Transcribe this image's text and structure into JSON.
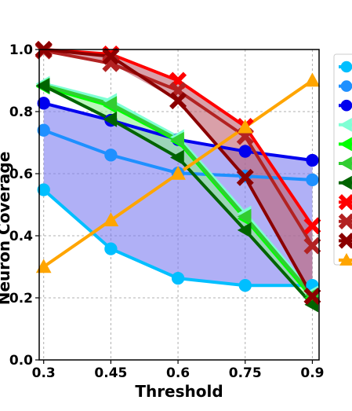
{
  "chart_data": {
    "type": "line",
    "title": "",
    "xlabel": "Threshold",
    "ylabel": "Neuron Coverage",
    "x": [
      0.3,
      0.45,
      0.6,
      0.75,
      0.9
    ],
    "xticks": [
      "0.3",
      "0.45",
      "0.6",
      "0.75",
      "0.9"
    ],
    "yticks": [
      "0.0",
      "0.2",
      "0.4",
      "0.6",
      "0.8",
      "1.0"
    ],
    "xlim": [
      0.29,
      0.915
    ],
    "ylim": [
      0.0,
      1.0
    ],
    "grid": true,
    "legend_position": "right (cropped)",
    "series": [
      {
        "color": "#00bfff",
        "marker": "circle",
        "values": [
          0.548,
          0.358,
          0.263,
          0.24,
          0.24
        ]
      },
      {
        "color": "#1e90ff",
        "marker": "circle",
        "values": [
          0.74,
          0.66,
          0.602,
          0.592,
          0.58
        ]
      },
      {
        "color": "#0000ee",
        "marker": "circle",
        "values": [
          0.827,
          0.772,
          0.71,
          0.672,
          0.643
        ]
      },
      {
        "color": "#7fffd4",
        "marker": "triangle-left",
        "values": [
          0.89,
          0.835,
          0.718,
          0.472,
          0.215
        ]
      },
      {
        "color": "#00ff00",
        "marker": "triangle-left",
        "values": [
          0.88,
          0.818,
          0.705,
          0.455,
          0.2
        ]
      },
      {
        "color": "#32cd32",
        "marker": "triangle-left",
        "values": [
          0.885,
          0.825,
          0.71,
          0.462,
          0.208
        ]
      },
      {
        "color": "#006400",
        "marker": "triangle-left",
        "values": [
          0.883,
          0.775,
          0.652,
          0.418,
          0.178
        ]
      },
      {
        "color": "#ff0000",
        "marker": "x",
        "values": [
          1.0,
          0.985,
          0.9,
          0.752,
          0.432
        ]
      },
      {
        "color": "#b22222",
        "marker": "x",
        "values": [
          0.996,
          0.955,
          0.868,
          0.72,
          0.368
        ]
      },
      {
        "color": "#8b0000",
        "marker": "x",
        "values": [
          1.0,
          0.978,
          0.835,
          0.588,
          0.205
        ]
      },
      {
        "color": "#ffa500",
        "marker": "triangle-up",
        "values": [
          0.3,
          0.45,
          0.6,
          0.75,
          0.9
        ]
      }
    ],
    "fills": [
      {
        "color": "#7b7bf0",
        "between": [
          0,
          2
        ]
      },
      {
        "color": "#90ee90",
        "between": [
          3,
          6
        ]
      },
      {
        "color": "#c06070",
        "between": [
          7,
          9
        ]
      }
    ]
  }
}
